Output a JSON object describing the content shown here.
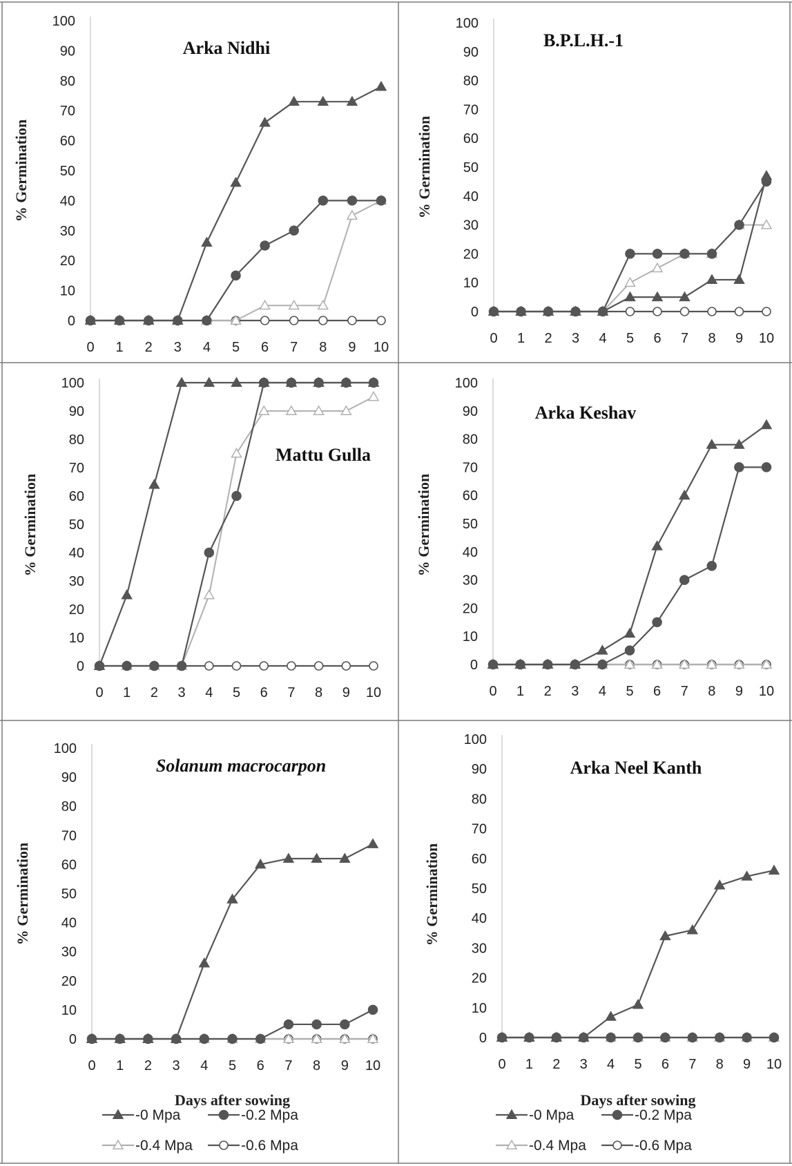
{
  "legend_series": [
    {
      "name": "-0 Mpa",
      "color": "#555555",
      "marker": "triangle"
    },
    {
      "name": "-0.2 Mpa",
      "color": "#555555",
      "marker": "circle-filled"
    },
    {
      "name": "-0.4 Mpa",
      "color": "#b0b0b0",
      "marker": "triangle-open"
    },
    {
      "name": "-0.6 Mpa",
      "color": "#555555",
      "marker": "circle-open"
    }
  ],
  "chart_data": [
    {
      "type": "line",
      "title": "Arka Nidhi",
      "title_italic": false,
      "ylabel": "% Germination",
      "xlabel": "",
      "ylim": [
        0,
        100
      ],
      "yticks": [
        0,
        10,
        20,
        30,
        40,
        50,
        60,
        70,
        80,
        90,
        100
      ],
      "x": [
        0,
        1,
        2,
        3,
        4,
        5,
        6,
        7,
        8,
        9,
        10
      ],
      "series": [
        {
          "name": "-0 Mpa",
          "values": [
            0,
            0,
            0,
            0,
            26,
            46,
            66,
            73,
            73,
            73,
            78
          ]
        },
        {
          "name": "-0.2 Mpa",
          "values": [
            0,
            0,
            0,
            0,
            0,
            15,
            25,
            30,
            40,
            40,
            40
          ]
        },
        {
          "name": "-0.4 Mpa",
          "values": [
            0,
            0,
            0,
            0,
            0,
            0,
            5,
            5,
            5,
            35,
            40
          ]
        },
        {
          "name": "-0.6 Mpa",
          "values": [
            0,
            0,
            0,
            0,
            0,
            0,
            0,
            0,
            0,
            0,
            0
          ]
        }
      ]
    },
    {
      "type": "line",
      "title": "B.P.L.H.-1",
      "title_italic": false,
      "ylabel": "% Germination",
      "xlabel": "",
      "ylim": [
        0,
        100
      ],
      "yticks": [
        0,
        10,
        20,
        30,
        40,
        50,
        60,
        70,
        80,
        90,
        100
      ],
      "x": [
        0,
        1,
        2,
        3,
        4,
        5,
        6,
        7,
        8,
        9,
        10
      ],
      "series": [
        {
          "name": "-0 Mpa",
          "values": [
            0,
            0,
            0,
            0,
            0,
            5,
            5,
            5,
            11,
            11,
            47
          ]
        },
        {
          "name": "-0.2 Mpa",
          "values": [
            0,
            0,
            0,
            0,
            0,
            20,
            20,
            20,
            20,
            30,
            45
          ]
        },
        {
          "name": "-0.4 Mpa",
          "values": [
            0,
            0,
            0,
            0,
            0,
            10,
            15,
            20,
            20,
            30,
            30
          ]
        },
        {
          "name": "-0.6 Mpa",
          "values": [
            0,
            0,
            0,
            0,
            0,
            0,
            0,
            0,
            0,
            0,
            0
          ]
        }
      ]
    },
    {
      "type": "line",
      "title": "Mattu Gulla",
      "title_italic": false,
      "ylabel": "% Germination",
      "xlabel": "",
      "ylim": [
        0,
        100
      ],
      "yticks": [
        0,
        10,
        20,
        30,
        40,
        50,
        60,
        70,
        80,
        90,
        100
      ],
      "x": [
        0,
        1,
        2,
        3,
        4,
        5,
        6,
        7,
        8,
        9,
        10
      ],
      "series": [
        {
          "name": "-0 Mpa",
          "values": [
            0,
            25,
            64,
            100,
            100,
            100,
            100,
            100,
            100,
            100,
            100
          ]
        },
        {
          "name": "-0.2 Mpa",
          "values": [
            0,
            0,
            0,
            0,
            40,
            60,
            100,
            100,
            100,
            100,
            100
          ]
        },
        {
          "name": "-0.4 Mpa",
          "values": [
            0,
            0,
            0,
            0,
            25,
            75,
            90,
            90,
            90,
            90,
            95
          ]
        },
        {
          "name": "-0.6 Mpa",
          "values": [
            0,
            0,
            0,
            0,
            0,
            0,
            0,
            0,
            0,
            0,
            0
          ]
        }
      ]
    },
    {
      "type": "line",
      "title": "Arka Keshav",
      "title_italic": false,
      "ylabel": "% Germination",
      "xlabel": "",
      "ylim": [
        0,
        100
      ],
      "yticks": [
        0,
        10,
        20,
        30,
        40,
        50,
        60,
        70,
        80,
        90,
        100
      ],
      "x": [
        0,
        1,
        2,
        3,
        4,
        5,
        6,
        7,
        8,
        9,
        10
      ],
      "series": [
        {
          "name": "-0 Mpa",
          "values": [
            0,
            0,
            0,
            0,
            5,
            11,
            42,
            60,
            78,
            78,
            85
          ]
        },
        {
          "name": "-0.2 Mpa",
          "values": [
            0,
            0,
            0,
            0,
            0,
            5,
            15,
            30,
            35,
            70,
            70
          ]
        },
        {
          "name": "-0.4 Mpa",
          "values": [
            0,
            0,
            0,
            0,
            0,
            0,
            0,
            0,
            0,
            0,
            0
          ]
        },
        {
          "name": "-0.6 Mpa",
          "values": [
            0,
            0,
            0,
            0,
            0,
            0,
            0,
            0,
            0,
            0,
            0
          ]
        }
      ]
    },
    {
      "type": "line",
      "title": "Solanum macrocarpon",
      "title_italic": true,
      "ylabel": "% Germination",
      "xlabel": "Days after sowing",
      "ylim": [
        0,
        100
      ],
      "yticks": [
        0,
        10,
        20,
        30,
        40,
        50,
        60,
        70,
        80,
        90,
        100
      ],
      "x": [
        0,
        1,
        2,
        3,
        4,
        5,
        6,
        7,
        8,
        9,
        10
      ],
      "series": [
        {
          "name": "-0 Mpa",
          "values": [
            0,
            0,
            0,
            0,
            26,
            48,
            60,
            62,
            62,
            62,
            67
          ]
        },
        {
          "name": "-0.2 Mpa",
          "values": [
            0,
            0,
            0,
            0,
            0,
            0,
            0,
            5,
            5,
            5,
            10
          ]
        },
        {
          "name": "-0.4 Mpa",
          "values": [
            0,
            0,
            0,
            0,
            0,
            0,
            0,
            0,
            0,
            0,
            0
          ]
        },
        {
          "name": "-0.6 Mpa",
          "values": [
            0,
            0,
            0,
            0,
            0,
            0,
            0,
            0,
            0,
            0,
            0
          ]
        }
      ]
    },
    {
      "type": "line",
      "title": "Arka Neel Kanth",
      "title_italic": false,
      "ylabel": "% Germination",
      "xlabel": "Days after sowing",
      "ylim": [
        0,
        100
      ],
      "yticks": [
        0,
        10,
        20,
        30,
        40,
        50,
        60,
        70,
        80,
        90,
        100
      ],
      "x": [
        0,
        1,
        2,
        3,
        4,
        5,
        6,
        7,
        8,
        9,
        10
      ],
      "series": [
        {
          "name": "-0 Mpa",
          "values": [
            0,
            0,
            0,
            0,
            7,
            11,
            34,
            36,
            51,
            54,
            56
          ]
        },
        {
          "name": "-0.2 Mpa",
          "values": [
            0,
            0,
            0,
            0,
            0,
            0,
            0,
            0,
            0,
            0,
            0
          ]
        },
        {
          "name": "-0.4 Mpa",
          "values": [
            0,
            0,
            0,
            0,
            0,
            0,
            0,
            0,
            0,
            0,
            0
          ]
        },
        {
          "name": "-0.6 Mpa",
          "values": [
            0,
            0,
            0,
            0,
            0,
            0,
            0,
            0,
            0,
            0,
            0
          ]
        }
      ]
    }
  ]
}
